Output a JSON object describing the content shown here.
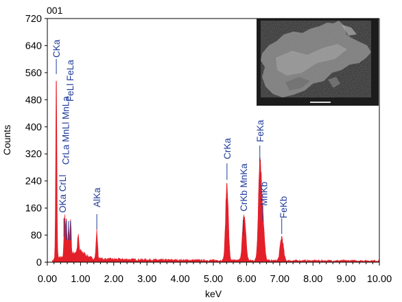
{
  "chart_data": {
    "type": "area",
    "title": "001",
    "xlabel": "keV",
    "ylabel": "Counts",
    "xlim": [
      0,
      10
    ],
    "ylim": [
      0,
      720
    ],
    "x_ticks": [
      "0.00",
      "1.00",
      "2.00",
      "3.00",
      "4.00",
      "5.00",
      "6.00",
      "7.00",
      "8.00",
      "9.00",
      "10.00"
    ],
    "y_ticks": [
      "0",
      "80",
      "160",
      "240",
      "320",
      "400",
      "480",
      "560",
      "640",
      "720"
    ],
    "series_color": "#e3202a",
    "peaks": [
      {
        "x": 0.27,
        "y": 545
      },
      {
        "x": 0.52,
        "y": 120
      },
      {
        "x": 0.57,
        "y": 118
      },
      {
        "x": 0.64,
        "y": 90
      },
      {
        "x": 0.7,
        "y": 110
      },
      {
        "x": 0.93,
        "y": 45
      },
      {
        "x": 1.49,
        "y": 82
      },
      {
        "x": 5.41,
        "y": 230
      },
      {
        "x": 5.9,
        "y": 70
      },
      {
        "x": 5.95,
        "y": 85
      },
      {
        "x": 6.4,
        "y": 288
      },
      {
        "x": 6.49,
        "y": 118
      },
      {
        "x": 7.06,
        "y": 70
      }
    ],
    "annotations": [
      {
        "label": "CKa",
        "x": 0.27
      },
      {
        "label": "FeLl FeLa",
        "x": 0.66
      },
      {
        "label": "CrLa MnLl MnLa",
        "x": 0.57
      },
      {
        "label": "OKa CrLl",
        "x": 0.52
      },
      {
        "label": "AlKa",
        "x": 1.49
      },
      {
        "label": "CrKa",
        "x": 5.41
      },
      {
        "label": "CrKb MnKa",
        "x": 5.9
      },
      {
        "label": "FeKa",
        "x": 6.4
      },
      {
        "label": "MnKb",
        "x": 6.49
      },
      {
        "label": "FeKb",
        "x": 7.06
      }
    ],
    "inset": "SEM micrograph"
  }
}
